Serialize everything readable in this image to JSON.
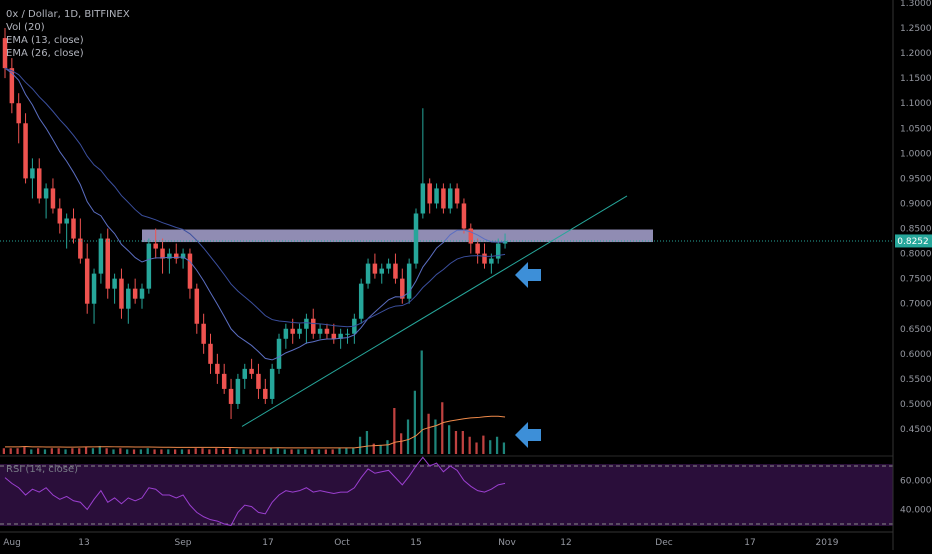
{
  "header": {
    "symbol_line": "0x / Dollar, 1D, BITFINEX",
    "indicators": [
      "Vol (20)",
      "EMA (13, close)",
      "EMA (26, close)"
    ]
  },
  "rsi_label": "RSI (14, close)",
  "price_tag": "0.8252",
  "colors": {
    "background": "#000000",
    "up": "#26a69a",
    "down": "#ef5350",
    "ema13": "#5b6ec2",
    "ema26": "#3b4f9e",
    "vol_ma": "#ef8a4a",
    "rsi_line": "#9b3fd0",
    "rsi_band": "#2a0e3a",
    "zone": "#b9b4e6",
    "trendline": "#26a69a",
    "arrow": "#3d8fd8"
  },
  "icons": [
    "left-arrow-icon",
    "left-arrow-icon"
  ],
  "chart_data": {
    "type": "candlestick",
    "price_axis_ticks": [
      "1.3000",
      "1.2500",
      "1.2000",
      "1.1500",
      "1.1000",
      "1.0500",
      "1.0000",
      "0.9500",
      "0.9000",
      "0.8500",
      "0.8000",
      "0.7500",
      "0.7000",
      "0.6500",
      "0.6000",
      "0.5500",
      "0.5000",
      "0.4500"
    ],
    "rsi_axis_ticks": [
      "60.0000",
      "40.0000"
    ],
    "x_axis_ticks": [
      "Aug",
      "13",
      "Sep",
      "17",
      "Oct",
      "15",
      "Nov",
      "12",
      "Dec",
      "17",
      "2019"
    ],
    "ylim": [
      0.44,
      1.3
    ],
    "last_price": 0.8252,
    "resistance_zone": [
      0.823,
      0.848
    ],
    "trendline": {
      "from": [
        0,
        0.455
      ],
      "to": [
        77,
        0.915
      ]
    },
    "rsi_levels": [
      70,
      30
    ],
    "series": [
      {
        "name": "OHLC",
        "values": [
          [
            1.23,
            1.25,
            1.15,
            1.17
          ],
          [
            1.17,
            1.19,
            1.08,
            1.1
          ],
          [
            1.1,
            1.12,
            1.02,
            1.06
          ],
          [
            1.06,
            1.08,
            0.94,
            0.95
          ],
          [
            0.95,
            0.99,
            0.91,
            0.97
          ],
          [
            0.97,
            0.99,
            0.9,
            0.91
          ],
          [
            0.91,
            0.94,
            0.87,
            0.93
          ],
          [
            0.93,
            0.95,
            0.88,
            0.89
          ],
          [
            0.89,
            0.91,
            0.84,
            0.86
          ],
          [
            0.86,
            0.88,
            0.81,
            0.87
          ],
          [
            0.87,
            0.89,
            0.82,
            0.83
          ],
          [
            0.83,
            0.87,
            0.78,
            0.79
          ],
          [
            0.79,
            0.82,
            0.68,
            0.7
          ],
          [
            0.7,
            0.77,
            0.66,
            0.76
          ],
          [
            0.76,
            0.84,
            0.74,
            0.83
          ],
          [
            0.83,
            0.85,
            0.71,
            0.73
          ],
          [
            0.73,
            0.76,
            0.7,
            0.75
          ],
          [
            0.75,
            0.77,
            0.67,
            0.69
          ],
          [
            0.69,
            0.74,
            0.66,
            0.73
          ],
          [
            0.73,
            0.75,
            0.7,
            0.71
          ],
          [
            0.71,
            0.74,
            0.69,
            0.73
          ],
          [
            0.73,
            0.83,
            0.72,
            0.82
          ],
          [
            0.82,
            0.85,
            0.79,
            0.81
          ],
          [
            0.81,
            0.83,
            0.76,
            0.79
          ],
          [
            0.79,
            0.81,
            0.76,
            0.8
          ],
          [
            0.8,
            0.82,
            0.78,
            0.79
          ],
          [
            0.79,
            0.81,
            0.77,
            0.8
          ],
          [
            0.8,
            0.81,
            0.71,
            0.73
          ],
          [
            0.73,
            0.74,
            0.64,
            0.66
          ],
          [
            0.66,
            0.68,
            0.6,
            0.62
          ],
          [
            0.62,
            0.64,
            0.56,
            0.58
          ],
          [
            0.58,
            0.6,
            0.54,
            0.56
          ],
          [
            0.56,
            0.58,
            0.52,
            0.53
          ],
          [
            0.53,
            0.55,
            0.47,
            0.5
          ],
          [
            0.5,
            0.56,
            0.49,
            0.55
          ],
          [
            0.55,
            0.58,
            0.53,
            0.57
          ],
          [
            0.57,
            0.59,
            0.55,
            0.56
          ],
          [
            0.56,
            0.58,
            0.51,
            0.53
          ],
          [
            0.53,
            0.55,
            0.5,
            0.51
          ],
          [
            0.51,
            0.58,
            0.5,
            0.57
          ],
          [
            0.57,
            0.64,
            0.56,
            0.63
          ],
          [
            0.63,
            0.66,
            0.61,
            0.65
          ],
          [
            0.65,
            0.67,
            0.62,
            0.64
          ],
          [
            0.64,
            0.66,
            0.63,
            0.65
          ],
          [
            0.65,
            0.68,
            0.62,
            0.67
          ],
          [
            0.67,
            0.69,
            0.63,
            0.64
          ],
          [
            0.64,
            0.66,
            0.63,
            0.65
          ],
          [
            0.65,
            0.66,
            0.63,
            0.64
          ],
          [
            0.64,
            0.66,
            0.62,
            0.63
          ],
          [
            0.63,
            0.65,
            0.61,
            0.64
          ],
          [
            0.64,
            0.65,
            0.62,
            0.64
          ],
          [
            0.64,
            0.68,
            0.62,
            0.67
          ],
          [
            0.67,
            0.75,
            0.66,
            0.74
          ],
          [
            0.74,
            0.79,
            0.73,
            0.78
          ],
          [
            0.78,
            0.8,
            0.75,
            0.76
          ],
          [
            0.76,
            0.78,
            0.74,
            0.77
          ],
          [
            0.77,
            0.79,
            0.76,
            0.78
          ],
          [
            0.78,
            0.8,
            0.74,
            0.75
          ],
          [
            0.75,
            0.77,
            0.7,
            0.71
          ],
          [
            0.71,
            0.79,
            0.7,
            0.78
          ],
          [
            0.78,
            0.89,
            0.77,
            0.88
          ],
          [
            0.88,
            1.09,
            0.87,
            0.94
          ],
          [
            0.94,
            0.95,
            0.88,
            0.9
          ],
          [
            0.9,
            0.94,
            0.89,
            0.93
          ],
          [
            0.93,
            0.94,
            0.88,
            0.89
          ],
          [
            0.89,
            0.94,
            0.88,
            0.93
          ],
          [
            0.93,
            0.94,
            0.89,
            0.9
          ],
          [
            0.9,
            0.91,
            0.84,
            0.85
          ],
          [
            0.85,
            0.86,
            0.8,
            0.82
          ],
          [
            0.82,
            0.83,
            0.78,
            0.8
          ],
          [
            0.8,
            0.82,
            0.77,
            0.78
          ],
          [
            0.78,
            0.8,
            0.76,
            0.79
          ],
          [
            0.79,
            0.83,
            0.78,
            0.82
          ],
          [
            0.82,
            0.84,
            0.81,
            0.825
          ]
        ]
      }
    ],
    "volume": [
      0.05,
      0.05,
      0.05,
      0.06,
      0.04,
      0.05,
      0.04,
      0.05,
      0.05,
      0.04,
      0.05,
      0.05,
      0.06,
      0.05,
      0.07,
      0.05,
      0.04,
      0.05,
      0.04,
      0.04,
      0.04,
      0.05,
      0.04,
      0.04,
      0.04,
      0.04,
      0.04,
      0.04,
      0.05,
      0.05,
      0.04,
      0.05,
      0.04,
      0.05,
      0.04,
      0.04,
      0.04,
      0.04,
      0.04,
      0.05,
      0.05,
      0.04,
      0.04,
      0.04,
      0.04,
      0.04,
      0.04,
      0.04,
      0.04,
      0.05,
      0.05,
      0.05,
      0.15,
      0.2,
      0.09,
      0.08,
      0.12,
      0.4,
      0.18,
      0.3,
      0.55,
      0.9,
      0.35,
      0.3,
      0.45,
      0.25,
      0.2,
      0.2,
      0.15,
      0.1,
      0.16,
      0.12,
      0.15,
      0.1
    ],
    "rsi": [
      62,
      58,
      55,
      50,
      54,
      52,
      55,
      50,
      47,
      49,
      46,
      45,
      40,
      47,
      53,
      45,
      48,
      44,
      48,
      46,
      48,
      55,
      54,
      50,
      50,
      48,
      50,
      43,
      38,
      35,
      33,
      32,
      30,
      29,
      38,
      43,
      42,
      38,
      37,
      45,
      50,
      53,
      52,
      53,
      55,
      52,
      53,
      52,
      51,
      52,
      52,
      55,
      62,
      68,
      65,
      66,
      67,
      62,
      57,
      63,
      70,
      76,
      70,
      72,
      66,
      70,
      67,
      60,
      56,
      53,
      52,
      54,
      57,
      58
    ]
  }
}
